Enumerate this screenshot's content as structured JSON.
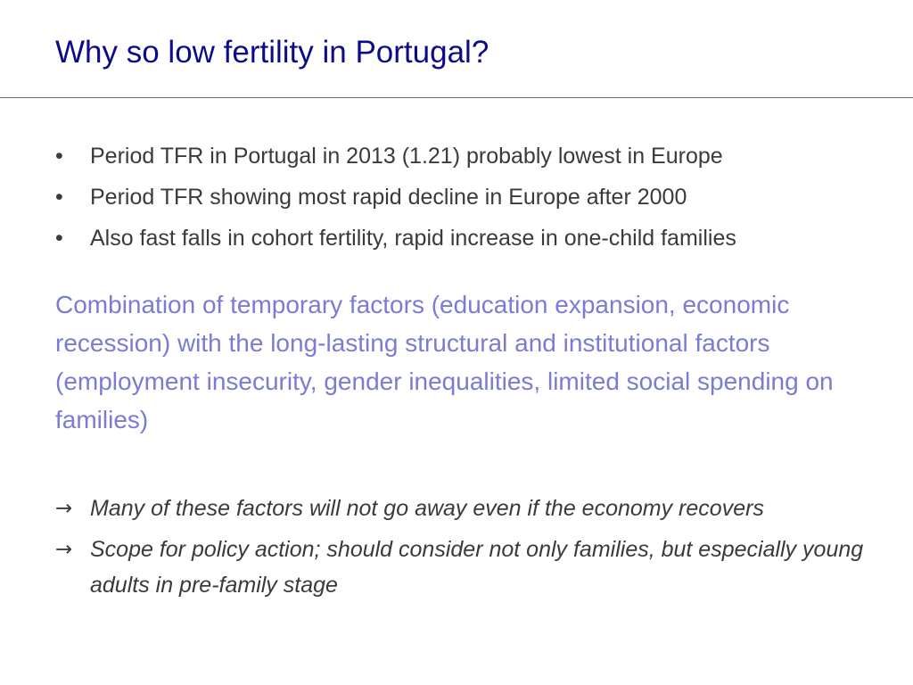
{
  "slide": {
    "title": "Why so low fertility in Portugal?",
    "bullets": [
      "Period TFR in Portugal in 2013 (1.21) probably lowest in Europe",
      "Period TFR showing most rapid decline in Europe after 2000",
      "Also fast falls in cohort fertility, rapid increase in one-child families"
    ],
    "summary": "Combination of temporary factors (education expansion, economic recession) with the long-lasting structural and institutional factors (employment insecurity, gender inequalities, limited social spending on families)",
    "conclusions": [
      "Many of these factors will not go away even if the economy recovers",
      "Scope for policy action; should consider not only families, but especially young adults in pre-family stage"
    ],
    "bullet_glyph": "•",
    "arrow_glyph": "→",
    "colors": {
      "title": "#0c0c8a",
      "body": "#3a3a3a",
      "summary": "#7b7bd6",
      "rule": "#6e6e6e"
    }
  }
}
